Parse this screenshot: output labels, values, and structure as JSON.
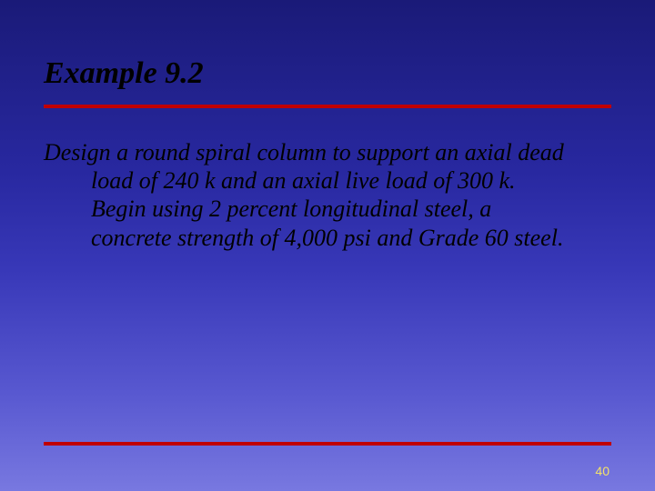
{
  "slide": {
    "title": "Example 9.2",
    "body": "Design a round spiral column to support an axial dead load of 240 k and an axial live load of 300 k.  Begin using 2 percent longitudinal steel, a concrete strength of 4,000 psi and Grade 60 steel.",
    "page_number": "40",
    "background_gradient": {
      "from": "#1a1a78",
      "to": "#7878e0"
    },
    "rule_color": "#c00000",
    "text_color": "#000000",
    "page_number_color": "#f4e26a",
    "title_fontsize_pt": 26,
    "body_fontsize_pt": 20,
    "font_style": "italic"
  }
}
